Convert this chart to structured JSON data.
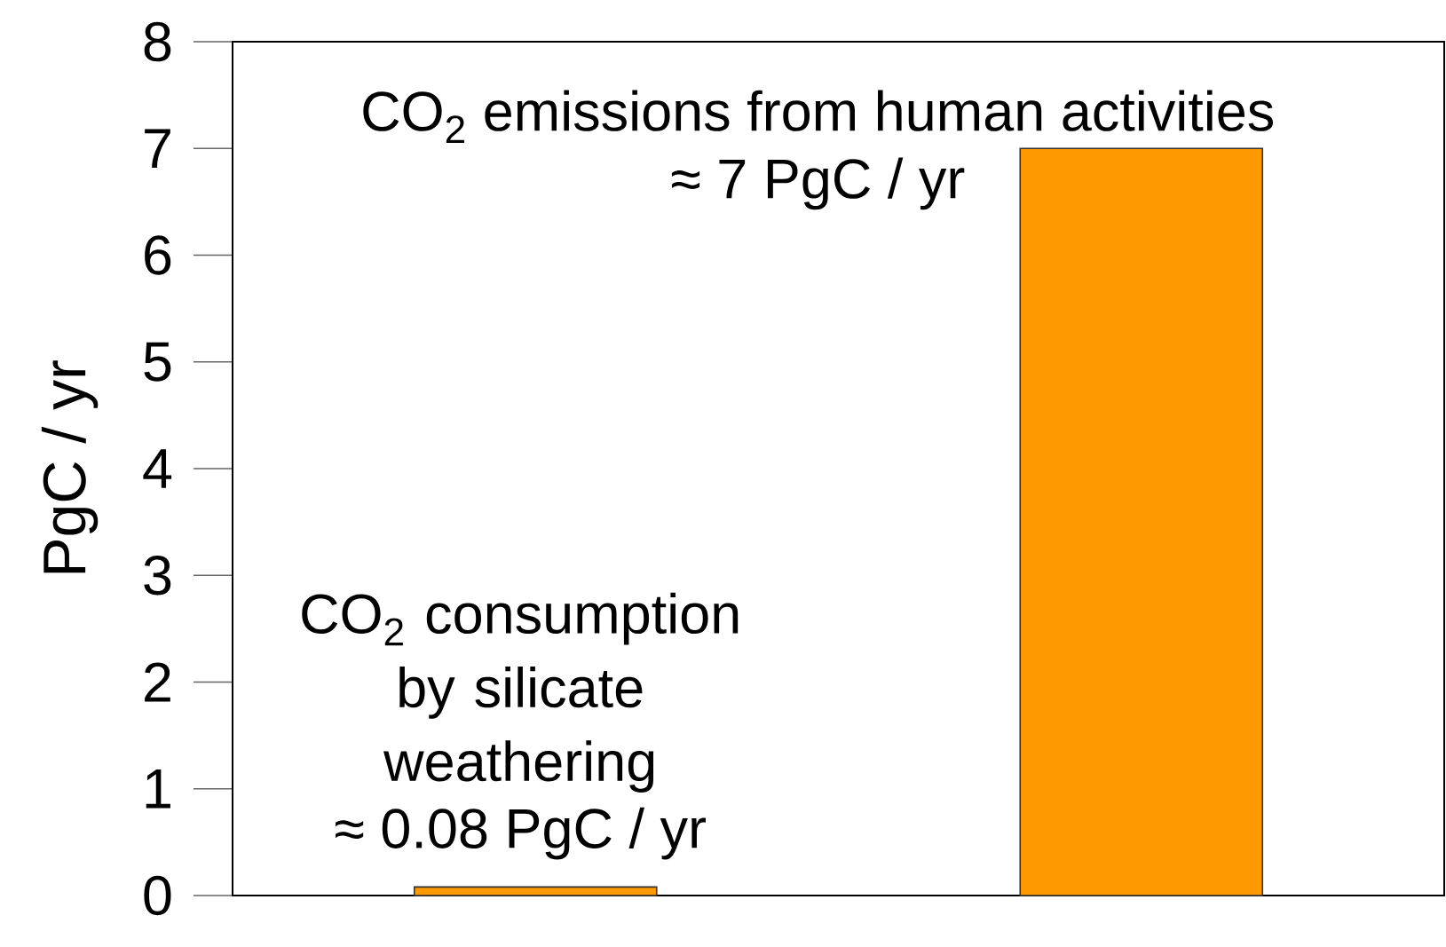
{
  "chart_data": {
    "type": "bar",
    "ylabel": "PgC / yr",
    "categories": [
      null,
      null
    ],
    "values": [
      0.08,
      7
    ],
    "color": "#ff9900",
    "ylim": [
      0,
      8
    ],
    "yticks": [
      0,
      1,
      2,
      3,
      4,
      5,
      6,
      7,
      8
    ],
    "annotations": [
      "CO$_{2}$ consumption by silicate weathering",
      "≈ 0.08 PgC / yr",
      "CO$_{2}$ emissions from human activities",
      "≈ 7 PgC / yr"
    ]
  }
}
